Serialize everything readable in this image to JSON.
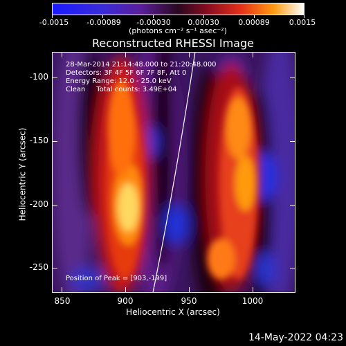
{
  "colorbar": {
    "ticks": [
      "-0.0015",
      "-0.00089",
      "-0.00030",
      "0.00030",
      "0.00089",
      "0.0015"
    ],
    "units": "(photons cm⁻² s⁻¹ asec⁻²)"
  },
  "plot": {
    "title": "Reconstructed RHESSI Image",
    "info_lines": "28-Mar-2014 21:14:48.000 to 21:20:48.000\nDetectors: 3F 4F 5F 6F 7F 8F, Att 0\nEnergy Range: 12.0 - 25.0 keV\nClean     Total counts: 3.49E+04",
    "peak_text": "Position of Peak = [903,-199]",
    "x_label": "Heliocentric X (arcsec)",
    "y_label": "Heliocentric Y (arcsec)",
    "x_ticks": [
      "850",
      "900",
      "950",
      "1000"
    ],
    "y_ticks": [
      "-100",
      "-150",
      "-200",
      "-250"
    ]
  },
  "footer": {
    "timestamp": "14-May-2022 04:23"
  },
  "colors": {
    "limb": "#ffffff",
    "background": "#000000"
  }
}
